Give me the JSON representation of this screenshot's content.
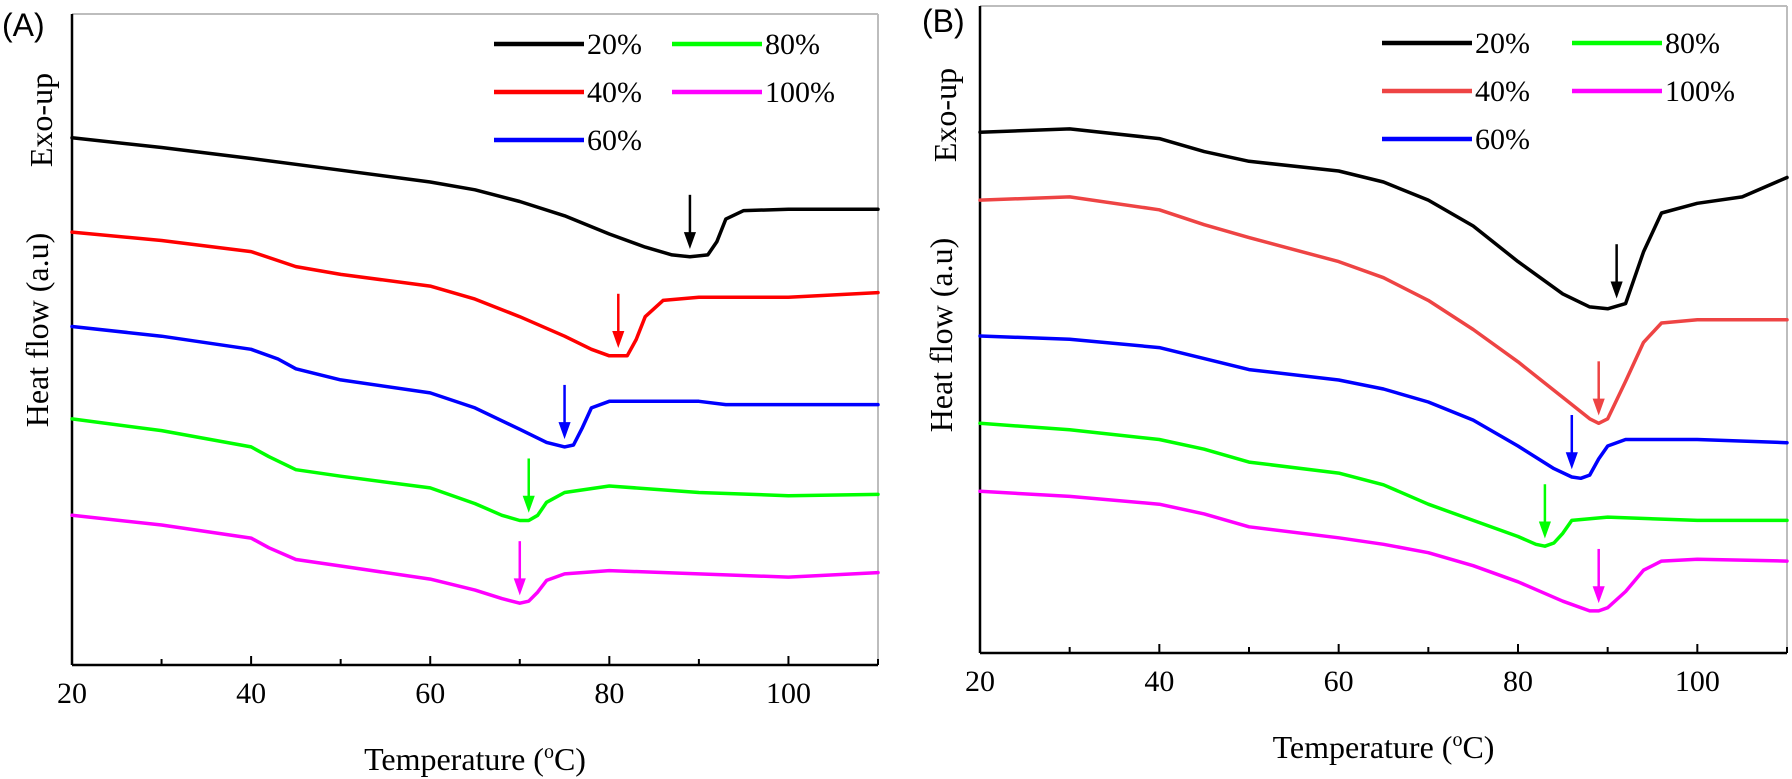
{
  "chart_data": [
    {
      "type": "line",
      "panel_label": "(A)",
      "xlabel": "Temperature (",
      "xlabel_sup": "o",
      "xlabel_unit": "C)",
      "ylabel": "Heat flow (a.u)",
      "ylabel_secondary": "Exo-up",
      "xlim": [
        20,
        110
      ],
      "xticks": [
        20,
        40,
        60,
        80,
        100
      ],
      "ylim": [
        0,
        10
      ],
      "legend_position": "top-right",
      "series": [
        {
          "name": "20%",
          "color": "#000000",
          "x": [
            20,
            30,
            40,
            50,
            60,
            65,
            70,
            75,
            80,
            84,
            87,
            89,
            91,
            92,
            93,
            95,
            100,
            110
          ],
          "y": [
            8.1,
            7.95,
            7.78,
            7.6,
            7.42,
            7.3,
            7.12,
            6.9,
            6.62,
            6.42,
            6.3,
            6.27,
            6.3,
            6.5,
            6.85,
            6.98,
            7.0,
            7.0
          ],
          "arrow_x": 89
        },
        {
          "name": "40%",
          "color": "#ff0000",
          "x": [
            20,
            30,
            40,
            45,
            50,
            60,
            65,
            70,
            75,
            78,
            80,
            82,
            83,
            84,
            86,
            90,
            100,
            110
          ],
          "y": [
            6.65,
            6.52,
            6.35,
            6.12,
            6.0,
            5.82,
            5.62,
            5.35,
            5.05,
            4.85,
            4.75,
            4.75,
            5.0,
            5.35,
            5.6,
            5.65,
            5.65,
            5.72
          ],
          "arrow_x": 81
        },
        {
          "name": "60%",
          "color": "#0000ff",
          "x": [
            20,
            30,
            40,
            43,
            45,
            50,
            60,
            65,
            70,
            73,
            75,
            76,
            77,
            78,
            80,
            90,
            93,
            100,
            110
          ],
          "y": [
            5.2,
            5.05,
            4.85,
            4.7,
            4.55,
            4.38,
            4.18,
            3.95,
            3.62,
            3.42,
            3.35,
            3.38,
            3.65,
            3.95,
            4.05,
            4.05,
            4.0,
            4.0,
            4.0
          ],
          "arrow_x": 75
        },
        {
          "name": "80%",
          "color": "#00ff00",
          "x": [
            20,
            30,
            40,
            42,
            45,
            50,
            60,
            65,
            68,
            70,
            71,
            72,
            73,
            75,
            80,
            90,
            100,
            110
          ],
          "y": [
            3.78,
            3.6,
            3.35,
            3.2,
            3.0,
            2.9,
            2.72,
            2.48,
            2.3,
            2.22,
            2.22,
            2.3,
            2.5,
            2.65,
            2.75,
            2.65,
            2.6,
            2.62
          ],
          "arrow_x": 71
        },
        {
          "name": "100%",
          "color": "#ff00ff",
          "x": [
            20,
            30,
            40,
            42,
            45,
            50,
            60,
            65,
            68,
            70,
            71,
            72,
            73,
            75,
            80,
            90,
            100,
            110
          ],
          "y": [
            2.3,
            2.15,
            1.95,
            1.8,
            1.62,
            1.52,
            1.32,
            1.15,
            1.02,
            0.95,
            0.98,
            1.12,
            1.3,
            1.4,
            1.45,
            1.4,
            1.35,
            1.42
          ],
          "arrow_x": 70
        }
      ]
    },
    {
      "type": "line",
      "panel_label": "(B)",
      "xlabel": "Temperature (",
      "xlabel_sup": "o",
      "xlabel_unit": "C)",
      "ylabel": "Heat flow (a.u)",
      "ylabel_secondary": "Exo-up",
      "xlim": [
        20,
        110
      ],
      "xticks": [
        20,
        40,
        60,
        80,
        100
      ],
      "ylim": [
        0,
        10
      ],
      "legend_position": "top-right",
      "series": [
        {
          "name": "20%",
          "color": "#000000",
          "x": [
            20,
            30,
            40,
            45,
            50,
            60,
            65,
            70,
            75,
            80,
            85,
            88,
            90,
            92,
            94,
            96,
            100,
            105,
            110
          ],
          "y": [
            8.05,
            8.1,
            7.95,
            7.75,
            7.6,
            7.45,
            7.28,
            7.0,
            6.6,
            6.05,
            5.55,
            5.35,
            5.32,
            5.4,
            6.2,
            6.8,
            6.95,
            7.05,
            7.35
          ],
          "arrow_x": 91
        },
        {
          "name": "40%",
          "color": "#ee4444",
          "x": [
            20,
            30,
            40,
            45,
            50,
            60,
            65,
            70,
            75,
            80,
            85,
            88,
            89,
            90,
            92,
            94,
            96,
            100,
            110
          ],
          "y": [
            7.0,
            7.05,
            6.85,
            6.62,
            6.42,
            6.05,
            5.8,
            5.45,
            5.0,
            4.5,
            3.95,
            3.62,
            3.55,
            3.62,
            4.2,
            4.8,
            5.1,
            5.15,
            5.15
          ],
          "arrow_x": 89
        },
        {
          "name": "60%",
          "color": "#0000ff",
          "x": [
            20,
            30,
            40,
            45,
            50,
            60,
            65,
            70,
            75,
            80,
            84,
            86,
            87,
            88,
            89,
            90,
            92,
            100,
            110
          ],
          "y": [
            4.9,
            4.85,
            4.72,
            4.55,
            4.38,
            4.22,
            4.08,
            3.88,
            3.6,
            3.2,
            2.85,
            2.72,
            2.7,
            2.75,
            3.0,
            3.2,
            3.3,
            3.3,
            3.25
          ],
          "arrow_x": 86
        },
        {
          "name": "80%",
          "color": "#00ff00",
          "x": [
            20,
            30,
            40,
            45,
            50,
            60,
            65,
            70,
            75,
            80,
            82,
            83,
            84,
            85,
            86,
            90,
            100,
            110
          ],
          "y": [
            3.55,
            3.45,
            3.3,
            3.15,
            2.95,
            2.78,
            2.6,
            2.3,
            2.05,
            1.8,
            1.68,
            1.65,
            1.7,
            1.85,
            2.05,
            2.1,
            2.05,
            2.05
          ],
          "arrow_x": 83
        },
        {
          "name": "100%",
          "color": "#ff00ff",
          "x": [
            20,
            30,
            40,
            45,
            50,
            60,
            65,
            70,
            75,
            80,
            85,
            88,
            89,
            90,
            92,
            94,
            96,
            100,
            110
          ],
          "y": [
            2.5,
            2.42,
            2.3,
            2.15,
            1.95,
            1.78,
            1.68,
            1.55,
            1.35,
            1.1,
            0.8,
            0.65,
            0.65,
            0.7,
            0.95,
            1.28,
            1.42,
            1.45,
            1.42
          ],
          "arrow_x": 89
        }
      ]
    }
  ]
}
